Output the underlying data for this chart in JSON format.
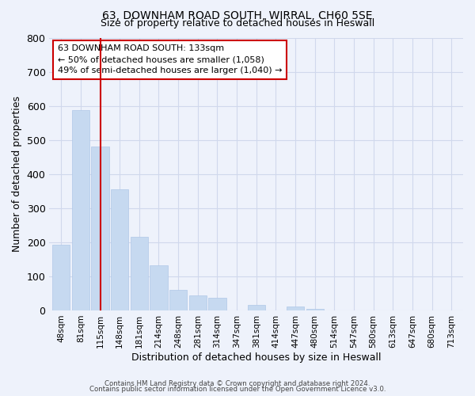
{
  "title1": "63, DOWNHAM ROAD SOUTH, WIRRAL, CH60 5SE",
  "title2": "Size of property relative to detached houses in Heswall",
  "xlabel": "Distribution of detached houses by size in Heswall",
  "ylabel": "Number of detached properties",
  "bar_labels": [
    "48sqm",
    "81sqm",
    "115sqm",
    "148sqm",
    "181sqm",
    "214sqm",
    "248sqm",
    "281sqm",
    "314sqm",
    "347sqm",
    "381sqm",
    "414sqm",
    "447sqm",
    "480sqm",
    "514sqm",
    "547sqm",
    "580sqm",
    "613sqm",
    "647sqm",
    "680sqm",
    "713sqm"
  ],
  "bar_values": [
    193,
    588,
    480,
    355,
    217,
    133,
    61,
    44,
    37,
    0,
    17,
    0,
    12,
    5,
    0,
    0,
    0,
    0,
    0,
    0,
    0
  ],
  "bar_color": "#c6d9f0",
  "bar_edge_color": "#b0c8e8",
  "vline_color": "#cc0000",
  "ylim": [
    0,
    800
  ],
  "yticks": [
    0,
    100,
    200,
    300,
    400,
    500,
    600,
    700,
    800
  ],
  "annotation_title": "63 DOWNHAM ROAD SOUTH: 133sqm",
  "annotation_line1": "← 50% of detached houses are smaller (1,058)",
  "annotation_line2": "49% of semi-detached houses are larger (1,040) →",
  "grid_color": "#d0d8ec",
  "bg_color": "#eef2fb",
  "footer1": "Contains HM Land Registry data © Crown copyright and database right 2024.",
  "footer2": "Contains public sector information licensed under the Open Government Licence v3.0."
}
